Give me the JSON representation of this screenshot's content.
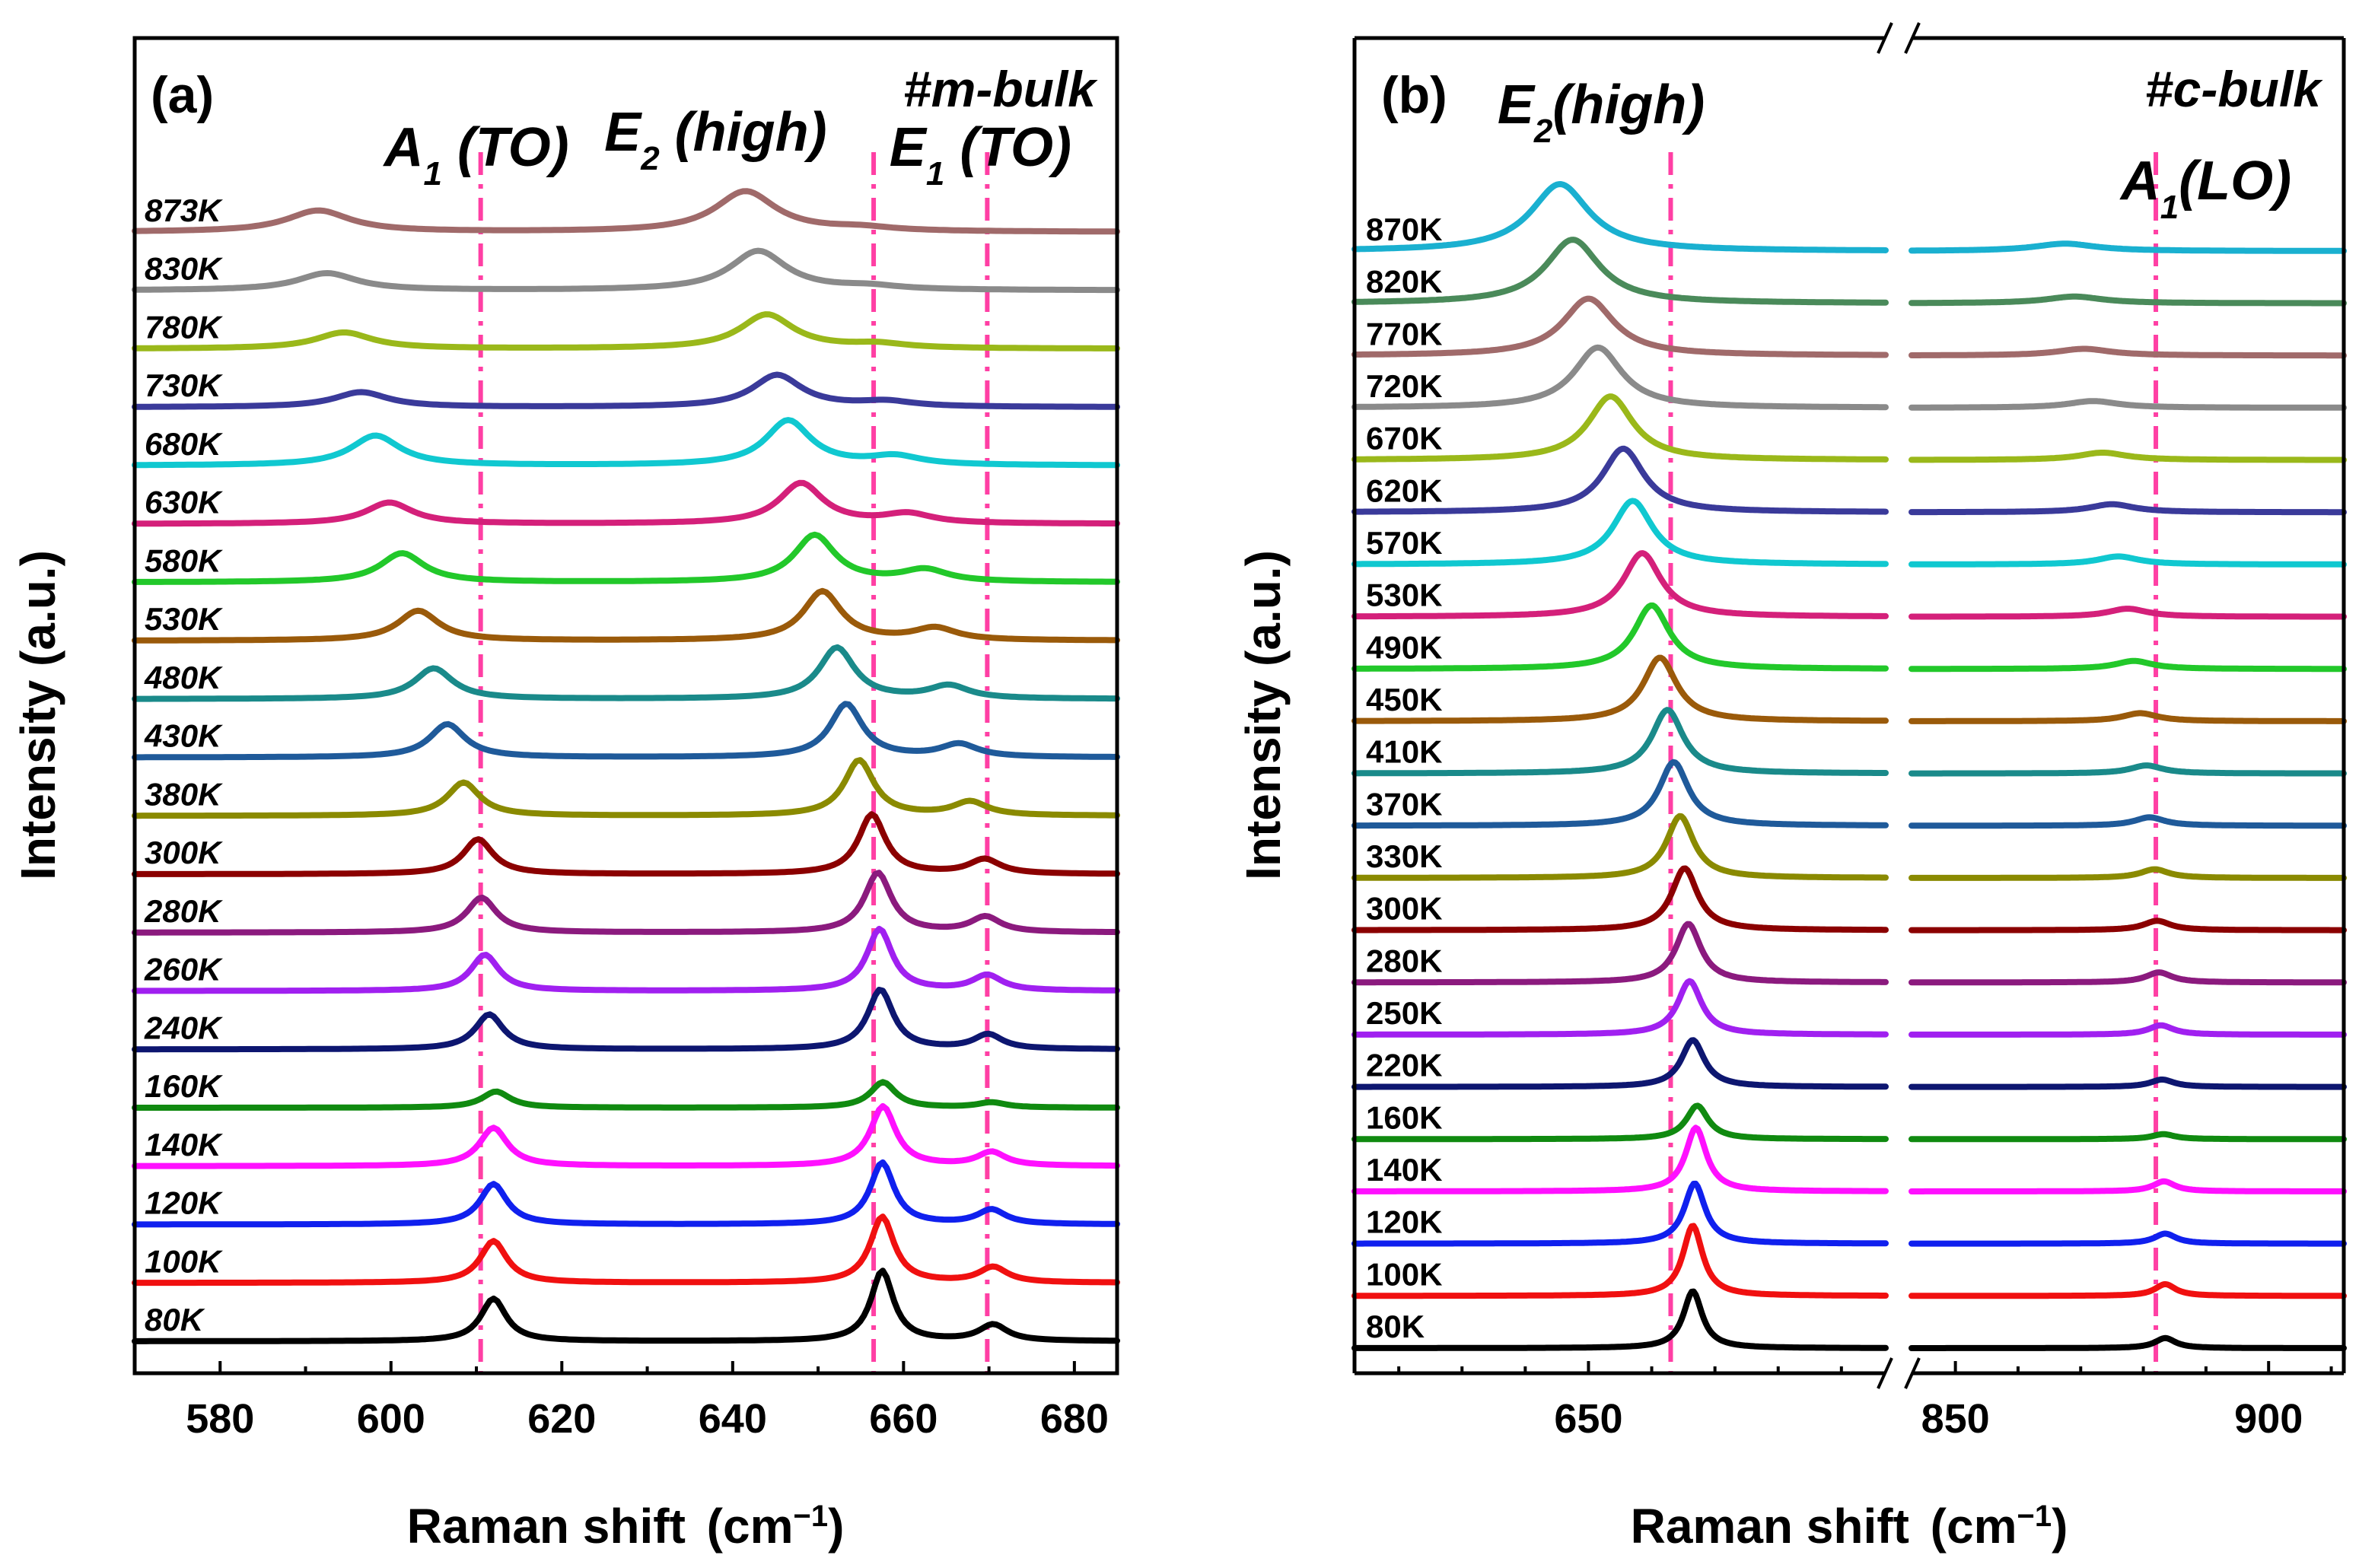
{
  "chart_data": [
    {
      "type": "line",
      "panel_label": "(a)",
      "sample": "#m-bulk",
      "xlabel": "Raman shift",
      "xlabel_unit": "(cm",
      "xlabel_unit_sup": "−1",
      "xlabel_unit_end": ")",
      "ylabel": "Intensity (a.u.)",
      "xlim": [
        570,
        685
      ],
      "xticks": [
        580,
        600,
        620,
        640,
        660,
        680
      ],
      "mode_labels": [
        {
          "base": "A",
          "sub": "1",
          "rest": " (TO)",
          "color": "#1f3fd6",
          "x": 610
        },
        {
          "base": "E",
          "sub": "2",
          "rest": " (high)",
          "color": "#111111",
          "x": 638
        },
        {
          "base": "E",
          "sub": "1",
          "rest": " (TO)",
          "color": "#ff1a1a",
          "x": 669
        }
      ],
      "reference_lines": [
        610.5,
        656.5,
        669.8
      ],
      "peaks_model": "lorentzian peaks per temperature: [center cm-1, amplitude a.u., half-width cm-1]",
      "series": [
        {
          "name": "80K",
          "color": "#000000",
          "peaks": [
            [
              612,
              1.0,
              1.8
            ],
            [
              657.5,
              1.65,
              1.6
            ],
            [
              670.5,
              0.38,
              2.0
            ]
          ]
        },
        {
          "name": "100K",
          "color": "#f01010",
          "peaks": [
            [
              612,
              0.98,
              1.9
            ],
            [
              657.5,
              1.55,
              1.7
            ],
            [
              670.5,
              0.36,
              2.0
            ]
          ]
        },
        {
          "name": "120K",
          "color": "#1020ee",
          "peaks": [
            [
              612,
              0.95,
              1.9
            ],
            [
              657.5,
              1.45,
              1.7
            ],
            [
              670.3,
              0.34,
              2.0
            ]
          ]
        },
        {
          "name": "140K",
          "color": "#ff10ff",
          "peaks": [
            [
              612,
              0.9,
              2.0
            ],
            [
              657.6,
              1.4,
              1.8
            ],
            [
              670.3,
              0.32,
              2.0
            ]
          ]
        },
        {
          "name": "160K",
          "color": "#108a10",
          "peaks": [
            [
              612.3,
              0.38,
              2.0
            ],
            [
              657.6,
              0.6,
              1.8
            ],
            [
              670.3,
              0.12,
              2.0
            ]
          ]
        },
        {
          "name": "240K",
          "color": "#0d1670",
          "peaks": [
            [
              611.5,
              0.82,
              2.0
            ],
            [
              657.3,
              1.4,
              1.8
            ],
            [
              669.9,
              0.34,
              2.0
            ]
          ]
        },
        {
          "name": "260K",
          "color": "#a020f0",
          "peaks": [
            [
              611,
              0.85,
              2.0
            ],
            [
              657.2,
              1.45,
              1.8
            ],
            [
              669.8,
              0.36,
              2.1
            ]
          ]
        },
        {
          "name": "280K",
          "color": "#8b1a7e",
          "peaks": [
            [
              610.6,
              0.82,
              2.1
            ],
            [
              657,
              1.4,
              1.9
            ],
            [
              669.6,
              0.36,
              2.1
            ]
          ]
        },
        {
          "name": "300K",
          "color": "#8b0000",
          "peaks": [
            [
              610.2,
              0.82,
              2.1
            ],
            [
              656.3,
              1.4,
              1.9
            ],
            [
              669.5,
              0.34,
              2.2
            ]
          ]
        },
        {
          "name": "380K",
          "color": "#8a8a00",
          "peaks": [
            [
              608.5,
              0.78,
              2.3
            ],
            [
              654.8,
              1.3,
              2.1
            ],
            [
              667.8,
              0.32,
              2.4
            ]
          ]
        },
        {
          "name": "430K",
          "color": "#1f5a9a",
          "peaks": [
            [
              606.6,
              0.78,
              2.5
            ],
            [
              653.3,
              1.25,
              2.3
            ],
            [
              666.5,
              0.3,
              2.6
            ]
          ]
        },
        {
          "name": "480K",
          "color": "#1a8a8a",
          "peaks": [
            [
              605,
              0.72,
              2.7
            ],
            [
              652.2,
              1.2,
              2.5
            ],
            [
              665.3,
              0.3,
              2.8
            ]
          ]
        },
        {
          "name": "530K",
          "color": "#9a5a0a",
          "peaks": [
            [
              603.2,
              0.7,
              2.9
            ],
            [
              650.5,
              1.15,
              2.7
            ],
            [
              663.7,
              0.28,
              3.0
            ]
          ]
        },
        {
          "name": "580K",
          "color": "#22c82a",
          "peaks": [
            [
              601.3,
              0.68,
              3.1
            ],
            [
              649.6,
              1.1,
              2.9
            ],
            [
              662.5,
              0.28,
              3.2
            ]
          ]
        },
        {
          "name": "630K",
          "color": "#d4207a",
          "peaks": [
            [
              599.8,
              0.5,
              3.3
            ],
            [
              648,
              0.95,
              3.1
            ],
            [
              660.5,
              0.22,
              3.4
            ]
          ]
        },
        {
          "name": "680K",
          "color": "#10c8d0",
          "peaks": [
            [
              598.2,
              0.7,
              3.5
            ],
            [
              646.5,
              1.05,
              3.2
            ],
            [
              659,
              0.2,
              3.6
            ]
          ]
        },
        {
          "name": "730K",
          "color": "#3a3a9a",
          "peaks": [
            [
              596.5,
              0.35,
              3.8
            ],
            [
              645.2,
              0.75,
              3.5
            ],
            [
              658,
              0.12,
              3.8
            ]
          ]
        },
        {
          "name": "780K",
          "color": "#9ab81a",
          "peaks": [
            [
              594.5,
              0.38,
              4.0
            ],
            [
              644,
              0.8,
              3.8
            ],
            [
              657,
              0.1,
              4.0
            ]
          ]
        },
        {
          "name": "830K",
          "color": "#8a8a8a",
          "peaks": [
            [
              592.5,
              0.4,
              4.2
            ],
            [
              643,
              0.92,
              4.0
            ],
            [
              656,
              0.08,
              4.2
            ]
          ]
        },
        {
          "name": "873K",
          "color": "#a06a6a",
          "peaks": [
            [
              591.5,
              0.5,
              4.5
            ],
            [
              641.5,
              0.95,
              4.3
            ],
            [
              655,
              0.08,
              4.5
            ]
          ]
        }
      ],
      "highlight_series": "300K",
      "highlight_color": "#ff1a8c"
    },
    {
      "type": "line",
      "panel_label": "(b)",
      "sample": "#c-bulk",
      "xlabel": "Raman shift",
      "xlabel_unit": "(cm",
      "xlabel_unit_sup": "−1",
      "xlabel_unit_end": ")",
      "ylabel": "Intensity (a.u.)",
      "broken_axis": true,
      "segments": [
        {
          "xlim": [
            613,
            697
          ],
          "xticks": [
            650
          ]
        },
        {
          "xlim": [
            843,
            912
          ],
          "xticks": [
            850,
            900
          ]
        }
      ],
      "mode_labels": [
        {
          "base": "E",
          "sub": "2",
          "rest": "(high)",
          "color": "#111111",
          "x": 652
        },
        {
          "base": "A",
          "sub": "1",
          "rest": "(LO)",
          "color": "#1f3fd6",
          "x": 890
        }
      ],
      "reference_lines": [
        663,
        882
      ],
      "series": [
        {
          "name": "80K",
          "color": "#000000",
          "peaks": [
            [
              666.5,
              1.7,
              1.8
            ],
            [
              883.5,
              0.3,
              2.0
            ]
          ]
        },
        {
          "name": "100K",
          "color": "#f01010",
          "peaks": [
            [
              666.5,
              2.1,
              1.9
            ],
            [
              883.5,
              0.35,
              2.0
            ]
          ]
        },
        {
          "name": "120K",
          "color": "#1020ee",
          "peaks": [
            [
              666.8,
              1.8,
              2.0
            ],
            [
              883.5,
              0.3,
              2.1
            ]
          ]
        },
        {
          "name": "140K",
          "color": "#ff10ff",
          "peaks": [
            [
              667,
              1.9,
              2.0
            ],
            [
              883.3,
              0.3,
              2.1
            ]
          ]
        },
        {
          "name": "160K",
          "color": "#108a10",
          "peaks": [
            [
              667.2,
              1.0,
              2.1
            ],
            [
              883.2,
              0.15,
              2.2
            ]
          ]
        },
        {
          "name": "220K",
          "color": "#0d1670",
          "peaks": [
            [
              666.5,
              1.4,
              2.2
            ],
            [
              883,
              0.22,
              2.3
            ]
          ]
        },
        {
          "name": "250K",
          "color": "#a020f0",
          "peaks": [
            [
              666,
              1.6,
              2.3
            ],
            [
              882.8,
              0.28,
              2.4
            ]
          ]
        },
        {
          "name": "280K",
          "color": "#8b1a7e",
          "peaks": [
            [
              665.8,
              1.75,
              2.4
            ],
            [
              882.5,
              0.3,
              2.5
            ]
          ]
        },
        {
          "name": "300K",
          "color": "#8b0000",
          "peaks": [
            [
              665.2,
              1.85,
              2.5
            ],
            [
              882.2,
              0.28,
              2.6
            ]
          ]
        },
        {
          "name": "330K",
          "color": "#8a8a00",
          "peaks": [
            [
              664.5,
              1.85,
              2.6
            ],
            [
              881.8,
              0.26,
              2.7
            ]
          ]
        },
        {
          "name": "370K",
          "color": "#1f5a9a",
          "peaks": [
            [
              663.5,
              1.9,
              2.8
            ],
            [
              881,
              0.25,
              2.9
            ]
          ]
        },
        {
          "name": "410K",
          "color": "#1a8a8a",
          "peaks": [
            [
              662.5,
              1.9,
              3.0
            ],
            [
              880.5,
              0.24,
              3.1
            ]
          ]
        },
        {
          "name": "450K",
          "color": "#9a5a0a",
          "peaks": [
            [
              661.3,
              1.9,
              3.2
            ],
            [
              879.5,
              0.24,
              3.4
            ]
          ]
        },
        {
          "name": "490K",
          "color": "#22c82a",
          "peaks": [
            [
              660,
              1.9,
              3.4
            ],
            [
              878.5,
              0.24,
              3.6
            ]
          ]
        },
        {
          "name": "530K",
          "color": "#d4207a",
          "peaks": [
            [
              658.5,
              1.9,
              3.6
            ],
            [
              877.5,
              0.24,
              3.8
            ]
          ]
        },
        {
          "name": "570K",
          "color": "#10c8d0",
          "peaks": [
            [
              657,
              1.9,
              3.8
            ],
            [
              876,
              0.24,
              4.0
            ]
          ]
        },
        {
          "name": "620K",
          "color": "#3a3a9a",
          "peaks": [
            [
              655.5,
              1.9,
              4.0
            ],
            [
              875,
              0.24,
              4.3
            ]
          ]
        },
        {
          "name": "670K",
          "color": "#9ab81a",
          "peaks": [
            [
              653.5,
              1.9,
              4.3
            ],
            [
              873.5,
              0.22,
              4.6
            ]
          ]
        },
        {
          "name": "720K",
          "color": "#8a8a8a",
          "peaks": [
            [
              651.5,
              1.8,
              4.6
            ],
            [
              872,
              0.2,
              4.9
            ]
          ]
        },
        {
          "name": "770K",
          "color": "#a06a6a",
          "peaks": [
            [
              650,
              1.7,
              4.9
            ],
            [
              870.5,
              0.2,
              5.2
            ]
          ]
        },
        {
          "name": "820K",
          "color": "#4a8a5a",
          "peaks": [
            [
              647.5,
              1.9,
              5.2
            ],
            [
              869,
              0.2,
              5.5
            ]
          ]
        },
        {
          "name": "870K",
          "color": "#1ab0d0",
          "peaks": [
            [
              645.5,
              2.0,
              5.6
            ],
            [
              867.5,
              0.22,
              6.0
            ]
          ]
        }
      ],
      "highlight_series": "300K",
      "highlight_color": "#ff1a8c"
    }
  ]
}
